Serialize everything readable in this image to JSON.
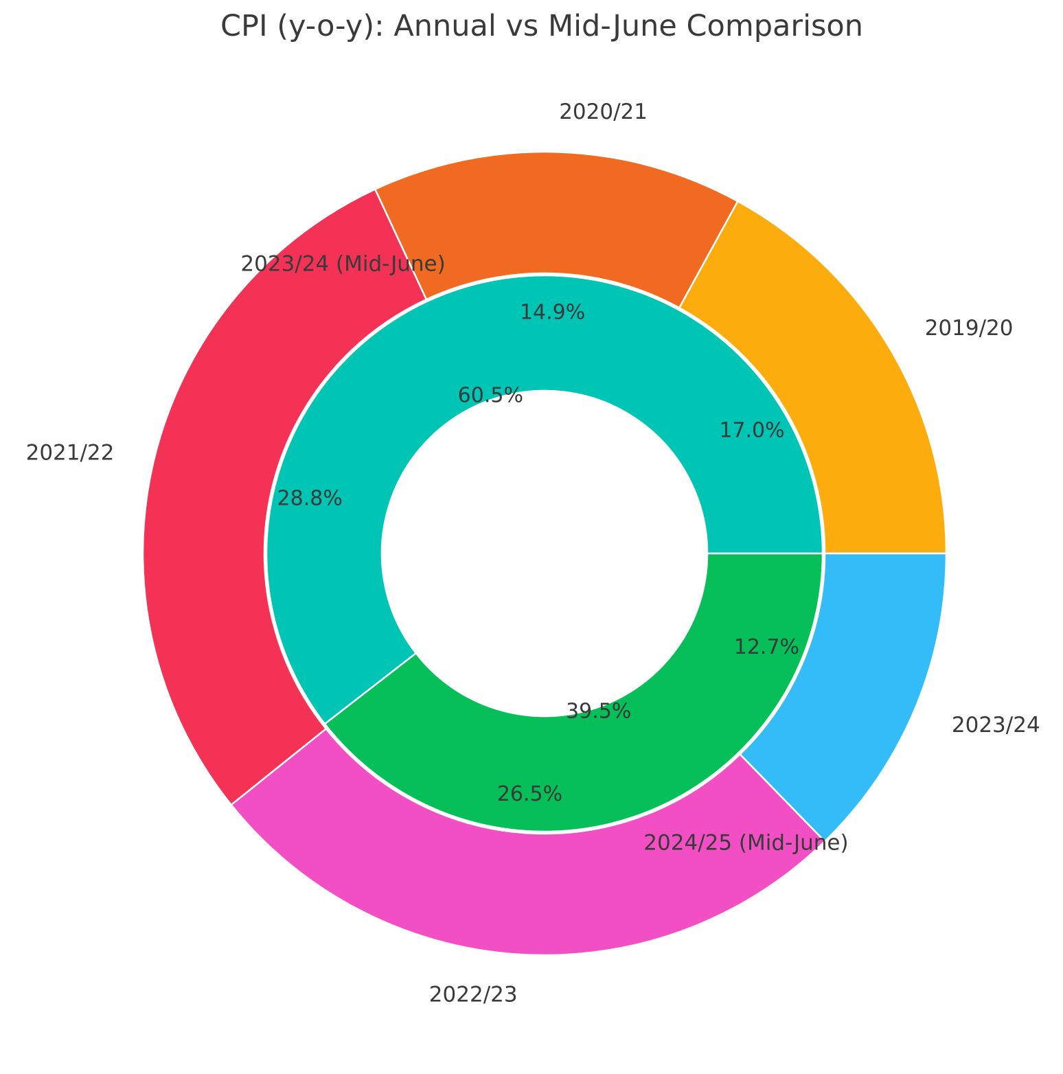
{
  "chart_data": {
    "type": "pie",
    "subtype": "nested-donut",
    "title": "CPI (y-o-y): Annual vs Mid-June Comparison",
    "background_color": "#ffffff",
    "text_color": "#3a3a3a",
    "edge_color": "#ffffff",
    "start_angle": 0,
    "direction": "counterclockwise",
    "legend": "none",
    "rings": [
      {
        "name": "annual",
        "position": "outer",
        "slices": [
          {
            "label": "2019/20",
            "value": 17.0,
            "pct_label": "17.0%",
            "color": "#FCAD0D"
          },
          {
            "label": "2020/21",
            "value": 14.9,
            "pct_label": "14.9%",
            "color": "#F06B21"
          },
          {
            "label": "2021/22",
            "value": 28.8,
            "pct_label": "28.8%",
            "color": "#F43255"
          },
          {
            "label": "2022/23",
            "value": 26.5,
            "pct_label": "26.5%",
            "color": "#F24FC4"
          },
          {
            "label": "2023/24",
            "value": 12.7,
            "pct_label": "12.7%",
            "color": "#33BCF8"
          }
        ]
      },
      {
        "name": "mid_june",
        "position": "inner",
        "slices": [
          {
            "label": "2023/24 (Mid-June)",
            "value": 60.5,
            "pct_label": "60.5%",
            "color": "#00C5B4"
          },
          {
            "label": "2024/25 (Mid-June)",
            "value": 39.5,
            "pct_label": "39.5%",
            "color": "#06BF58"
          }
        ]
      }
    ]
  }
}
